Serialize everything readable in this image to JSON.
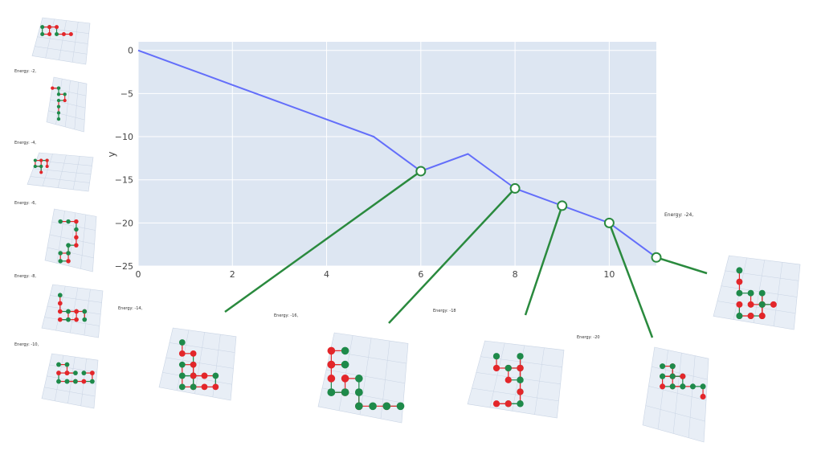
{
  "chart_data": {
    "type": "line",
    "ylabel": "y",
    "xlim": [
      0,
      11
    ],
    "ylim": [
      -25,
      1
    ],
    "x_ticks": [
      "0",
      "2",
      "4",
      "6",
      "8",
      "10"
    ],
    "y_ticks": [
      "0",
      "−5",
      "−10",
      "−15",
      "−20",
      "−25"
    ],
    "grid": true,
    "x": [
      0,
      1,
      2,
      3,
      4,
      5,
      6,
      7,
      8,
      9,
      10,
      11
    ],
    "y": [
      0,
      -2,
      -4,
      -6,
      -8,
      -10,
      -14,
      -12,
      -16,
      -18,
      -20,
      -24
    ],
    "highlighted_points": [
      {
        "x": 6,
        "y": -14
      },
      {
        "x": 8,
        "y": -16
      },
      {
        "x": 9,
        "y": -18
      },
      {
        "x": 10,
        "y": -20
      },
      {
        "x": 11,
        "y": -24
      }
    ]
  },
  "annotations": {
    "energy_labels": [
      {
        "text": "Energy: -16,"
      },
      {
        "text": "Energy: -18"
      },
      {
        "text": "Energy: -20"
      },
      {
        "text": "Energy: -24,"
      },
      {
        "text": "Energy: -14,"
      }
    ],
    "sidebar_labels": [
      {
        "text": "Energy: -2,"
      },
      {
        "text": "Energy: -4,"
      },
      {
        "text": "Energy: -6,"
      },
      {
        "text": "Energy: -8,"
      },
      {
        "text": "Energy: -10,"
      }
    ]
  },
  "colors": {
    "plot_bg": "#dde6f2",
    "line": "#636efa",
    "marker_stroke": "#2a8a3e",
    "callout": "#2a8a3e",
    "hp_red": "#e3262a",
    "hp_green": "#1e8a4a",
    "thumb_grid": "#c9d4e4"
  }
}
